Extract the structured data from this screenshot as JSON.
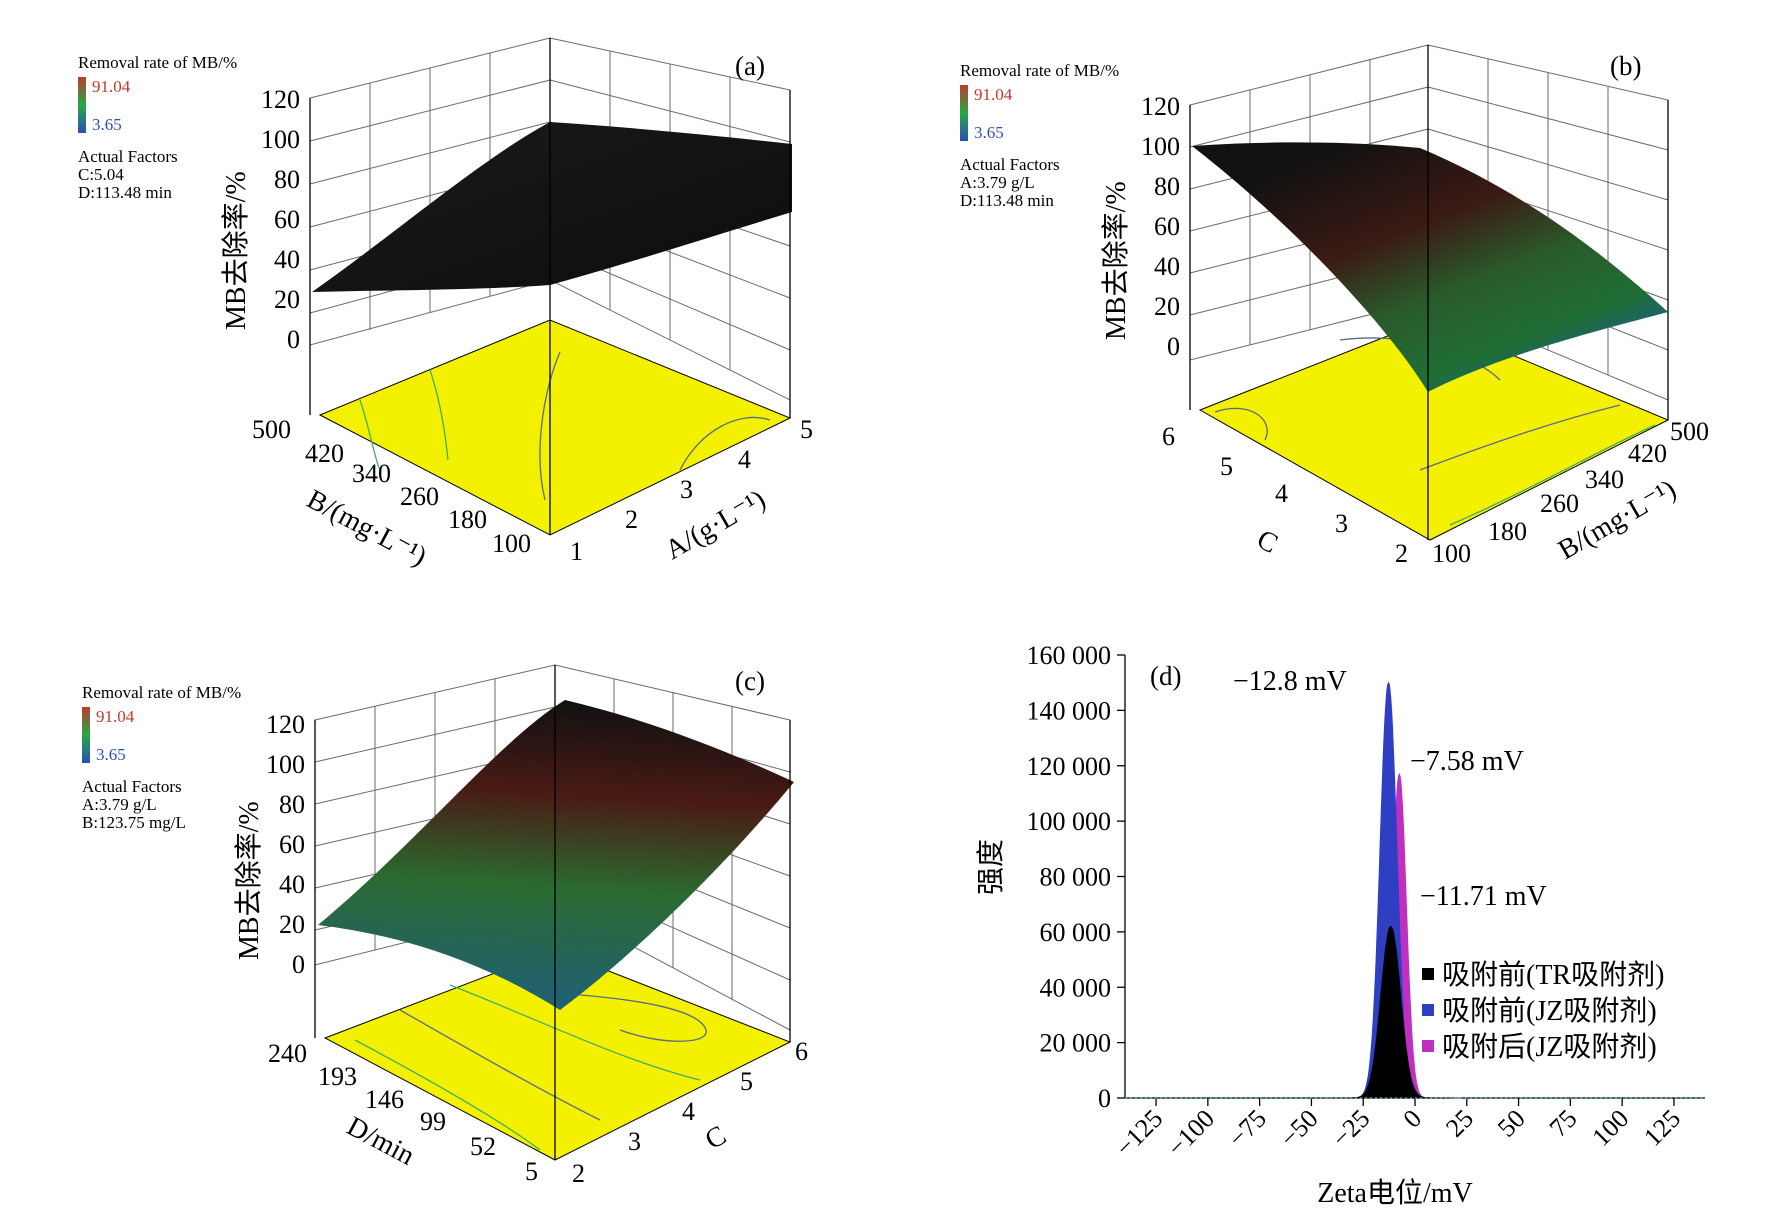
{
  "panel_a": {
    "label": "(a)",
    "legend_title": "Removal rate of MB/%",
    "legend_high": "91.04",
    "legend_low": "3.65",
    "factors_title": "Actual Factors",
    "factor1": "C:5.04",
    "factor2": "D:113.48 min",
    "z_label": "MB去除率/%",
    "z_ticks": [
      "0",
      "20",
      "40",
      "60",
      "80",
      "100",
      "120"
    ],
    "left_ticks": [
      "500",
      "420",
      "340",
      "260",
      "180",
      "100"
    ],
    "left_label": "B/(mg·L⁻¹)",
    "right_ticks": [
      "1",
      "2",
      "3",
      "4",
      "5"
    ],
    "right_label": "A/(g·L⁻¹)"
  },
  "panel_b": {
    "label": "(b)",
    "legend_title": "Removal rate of MB/%",
    "legend_high": "91.04",
    "legend_low": "3.65",
    "factors_title": "Actual Factors",
    "factor1": "A:3.79 g/L",
    "factor2": "D:113.48 min",
    "z_label": "MB去除率/%",
    "z_ticks": [
      "0",
      "20",
      "40",
      "60",
      "80",
      "100",
      "120"
    ],
    "left_ticks": [
      "6",
      "5",
      "4",
      "3",
      "2"
    ],
    "left_label": "C",
    "right_ticks": [
      "100",
      "180",
      "260",
      "340",
      "420",
      "500"
    ],
    "right_label": "B/(mg·L⁻¹)"
  },
  "panel_c": {
    "label": "(c)",
    "legend_title": "Removal rate of MB/%",
    "legend_high": "91.04",
    "legend_low": "3.65",
    "factors_title": "Actual Factors",
    "factor1": "A:3.79 g/L",
    "factor2": "B:123.75 mg/L",
    "z_label": "MB去除率/%",
    "z_ticks": [
      "0",
      "20",
      "40",
      "60",
      "80",
      "100",
      "120"
    ],
    "left_ticks": [
      "240",
      "193",
      "146",
      "99",
      "52",
      "5"
    ],
    "left_label": "D/min",
    "right_ticks": [
      "2",
      "3",
      "4",
      "5",
      "6"
    ],
    "right_label": "C"
  },
  "colors": {
    "high": "#c0392b",
    "mid": "#27a844",
    "low": "#2b4fb3",
    "floor": "#f4f100",
    "series_tr": "#000000",
    "series_jz_before": "#2e3fc4",
    "series_jz_after": "#c030c0"
  },
  "chart_data": [
    {
      "type": "surface3d",
      "panel": "(a)",
      "z_label": "MB去除率/%",
      "z_range": [
        0,
        120
      ],
      "x_label": "A/(g·L⁻¹)",
      "x_range": [
        1,
        5
      ],
      "y_label": "B/(mg·L⁻¹)",
      "y_range": [
        100,
        500
      ],
      "fixed_factors": [
        "C:5.04",
        "D:113.48 min"
      ],
      "corner_values": {
        "A1_B100": 20,
        "A5_B100": 100,
        "A1_B500": 20,
        "A5_B500": 95
      },
      "color_scale": {
        "min": 3.65,
        "max": 91.04
      }
    },
    {
      "type": "surface3d",
      "panel": "(b)",
      "z_label": "MB去除率/%",
      "z_range": [
        0,
        120
      ],
      "x_label": "C",
      "x_range": [
        2,
        6
      ],
      "y_label": "B/(mg·L⁻¹)",
      "y_range": [
        100,
        500
      ],
      "fixed_factors": [
        "A:3.79 g/L",
        "D:113.48 min"
      ],
      "corner_values": {
        "C6_B100": 100,
        "C2_B100": 10,
        "C6_B500": 100,
        "C2_B500": 15
      },
      "color_scale": {
        "min": 3.65,
        "max": 91.04
      }
    },
    {
      "type": "surface3d",
      "panel": "(c)",
      "z_label": "MB去除率/%",
      "z_range": [
        0,
        120
      ],
      "x_label": "C",
      "x_range": [
        2,
        6
      ],
      "y_label": "D/min",
      "y_range": [
        5,
        240
      ],
      "fixed_factors": [
        "A:3.79 g/L",
        "B:123.75 mg/L"
      ],
      "corner_values": {
        "C2_D5": 20,
        "C6_D5": 100,
        "C2_D240": 20,
        "C6_D240": 95
      },
      "color_scale": {
        "min": 3.65,
        "max": 91.04
      }
    },
    {
      "type": "area",
      "panel": "(d)",
      "xlabel": "Zeta电位/mV",
      "ylabel": "强度",
      "xlim": [
        -140,
        140
      ],
      "ylim": [
        0,
        160000
      ],
      "x_ticks": [
        "−125",
        "−100",
        "−75",
        "−50",
        "−25",
        "0",
        "25",
        "50",
        "75",
        "100",
        "125"
      ],
      "y_ticks": [
        "0",
        "20 000",
        "40 000",
        "60 000",
        "80 000",
        "100 000",
        "120 000",
        "140 000",
        "160 000"
      ],
      "annotations": [
        "−12.8 mV",
        "−7.58 mV",
        "−11.71 mV"
      ],
      "legend_position": "right",
      "series": [
        {
          "name": "吸附前(TR吸附剂)",
          "peak_x": -11.71,
          "peak_y": 62000,
          "width": 7
        },
        {
          "name": "吸附前(JZ吸附剂)",
          "peak_x": -12.8,
          "peak_y": 150000,
          "width": 6
        },
        {
          "name": "吸附后(JZ吸附剂)",
          "peak_x": -7.58,
          "peak_y": 117000,
          "width": 5
        }
      ]
    }
  ]
}
